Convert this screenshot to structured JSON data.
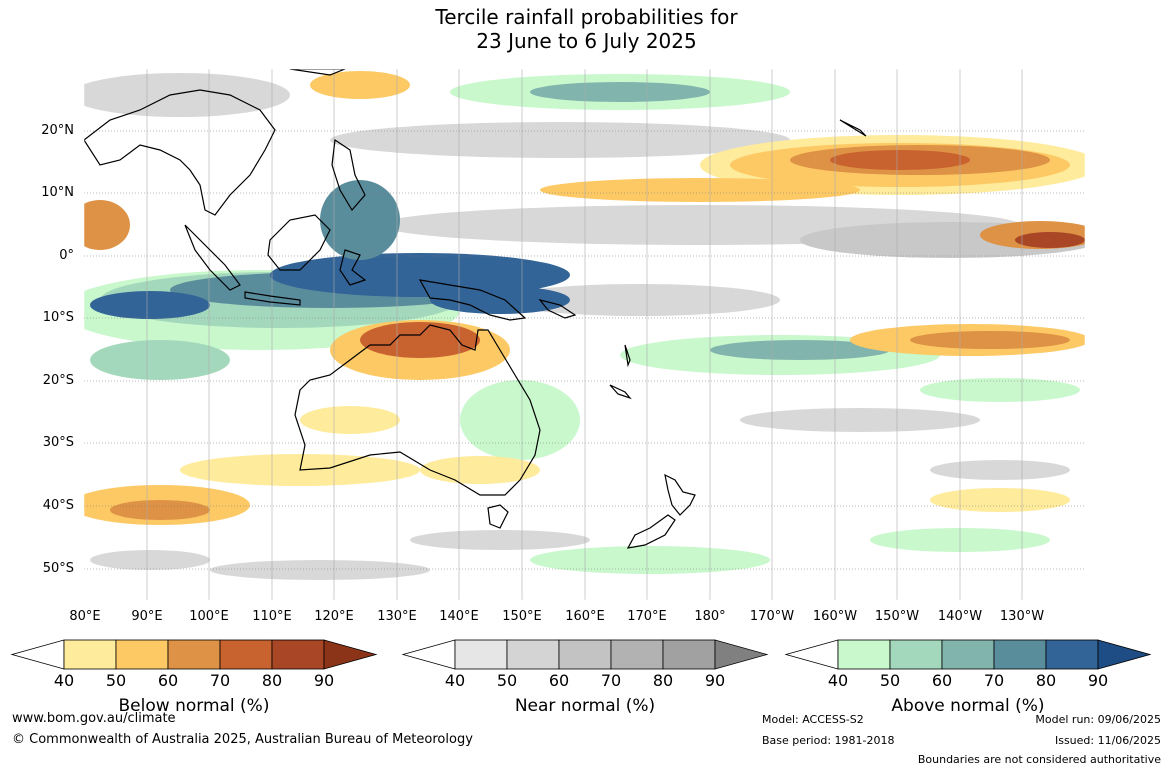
{
  "title": {
    "line1": "Tercile rainfall probabilities for",
    "line2": "23 June to 6 July 2025"
  },
  "lat_labels": [
    "20°N",
    "10°N",
    "0°",
    "10°S",
    "20°S",
    "30°S",
    "40°S",
    "50°S"
  ],
  "lon_labels": [
    "80°E",
    "90°E",
    "100°E",
    "110°E",
    "120°E",
    "130°E",
    "140°E",
    "150°E",
    "160°E",
    "170°E",
    "180°",
    "170°W",
    "160°W",
    "150°W",
    "140°W",
    "130°W"
  ],
  "colorbars": [
    {
      "label": "Below normal (%)",
      "ticks": [
        "40",
        "50",
        "60",
        "70",
        "80",
        "90"
      ],
      "colors": [
        "#ffffff",
        "#ffeb9c",
        "#fdc965",
        "#de9245",
        "#c8622f",
        "#a84626",
        "#8c3418"
      ]
    },
    {
      "label": "Near normal (%)",
      "ticks": [
        "40",
        "50",
        "60",
        "70",
        "80",
        "90"
      ],
      "colors": [
        "#ffffff",
        "#e6e6e6",
        "#d4d4d4",
        "#c3c3c3",
        "#b2b2b2",
        "#a1a1a1",
        "#808080"
      ]
    },
    {
      "label": "Above normal (%)",
      "ticks": [
        "40",
        "50",
        "60",
        "70",
        "80",
        "90"
      ],
      "colors": [
        "#ffffff",
        "#c8f8cc",
        "#a4d8bc",
        "#81b4ad",
        "#5a8d9c",
        "#336497",
        "#1d4d84"
      ]
    }
  ],
  "footer": {
    "website": "www.bom.gov.au/climate",
    "copyright": "© Commonwealth of Australia 2025, Australian Bureau of Meteorology",
    "model": "Model: ACCESS-S2",
    "base_period": "Base period: 1981-2018",
    "model_run": "Model run: 09/06/2025",
    "issued": "Issued: 11/06/2025",
    "disclaimer": "Boundaries are not considered authoritative"
  }
}
